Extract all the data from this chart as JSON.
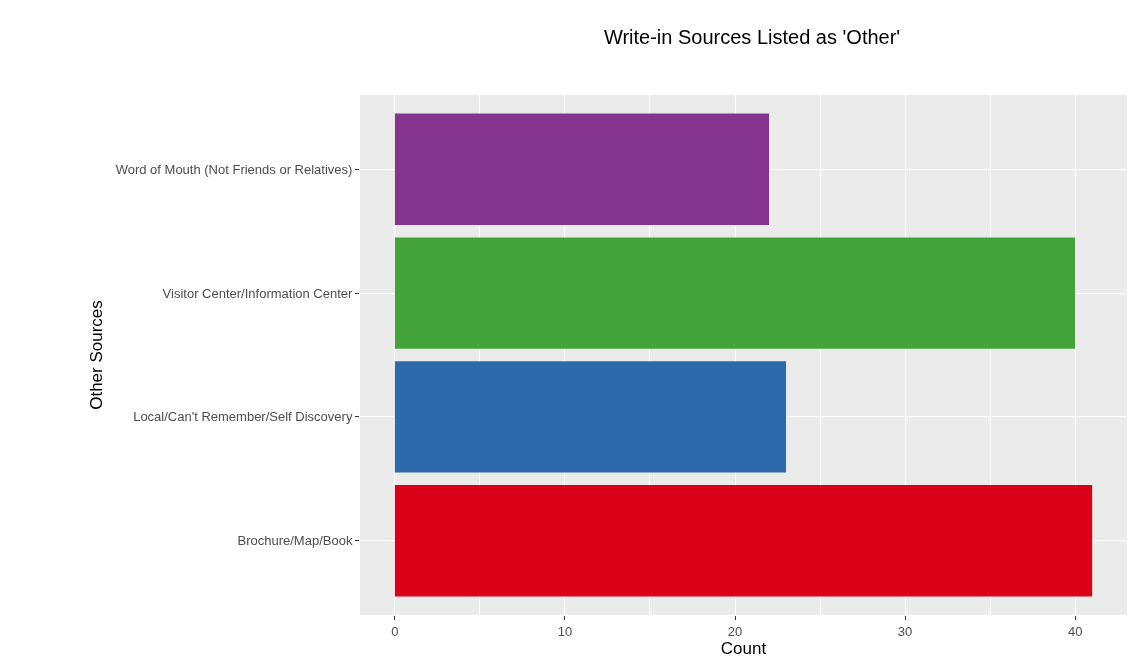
{
  "chart_data": {
    "type": "bar",
    "orientation": "horizontal",
    "title": "Write-in Sources Listed as 'Other'",
    "xlabel": "Count",
    "ylabel": "Other Sources",
    "categories": [
      "Word of Mouth (Not Friends or Relatives)",
      "Visitor Center/Information Center",
      "Local/Can't Remember/Self Discovery",
      "Brochure/Map/Book"
    ],
    "values": [
      22,
      40,
      23,
      41
    ],
    "colors": [
      "#84368f",
      "#42a43a",
      "#2e6aab",
      "#da0017"
    ],
    "xlim": [
      -2.05,
      43.05
    ],
    "xticks": [
      0,
      10,
      20,
      30,
      40
    ],
    "grid": true,
    "legend": false
  }
}
